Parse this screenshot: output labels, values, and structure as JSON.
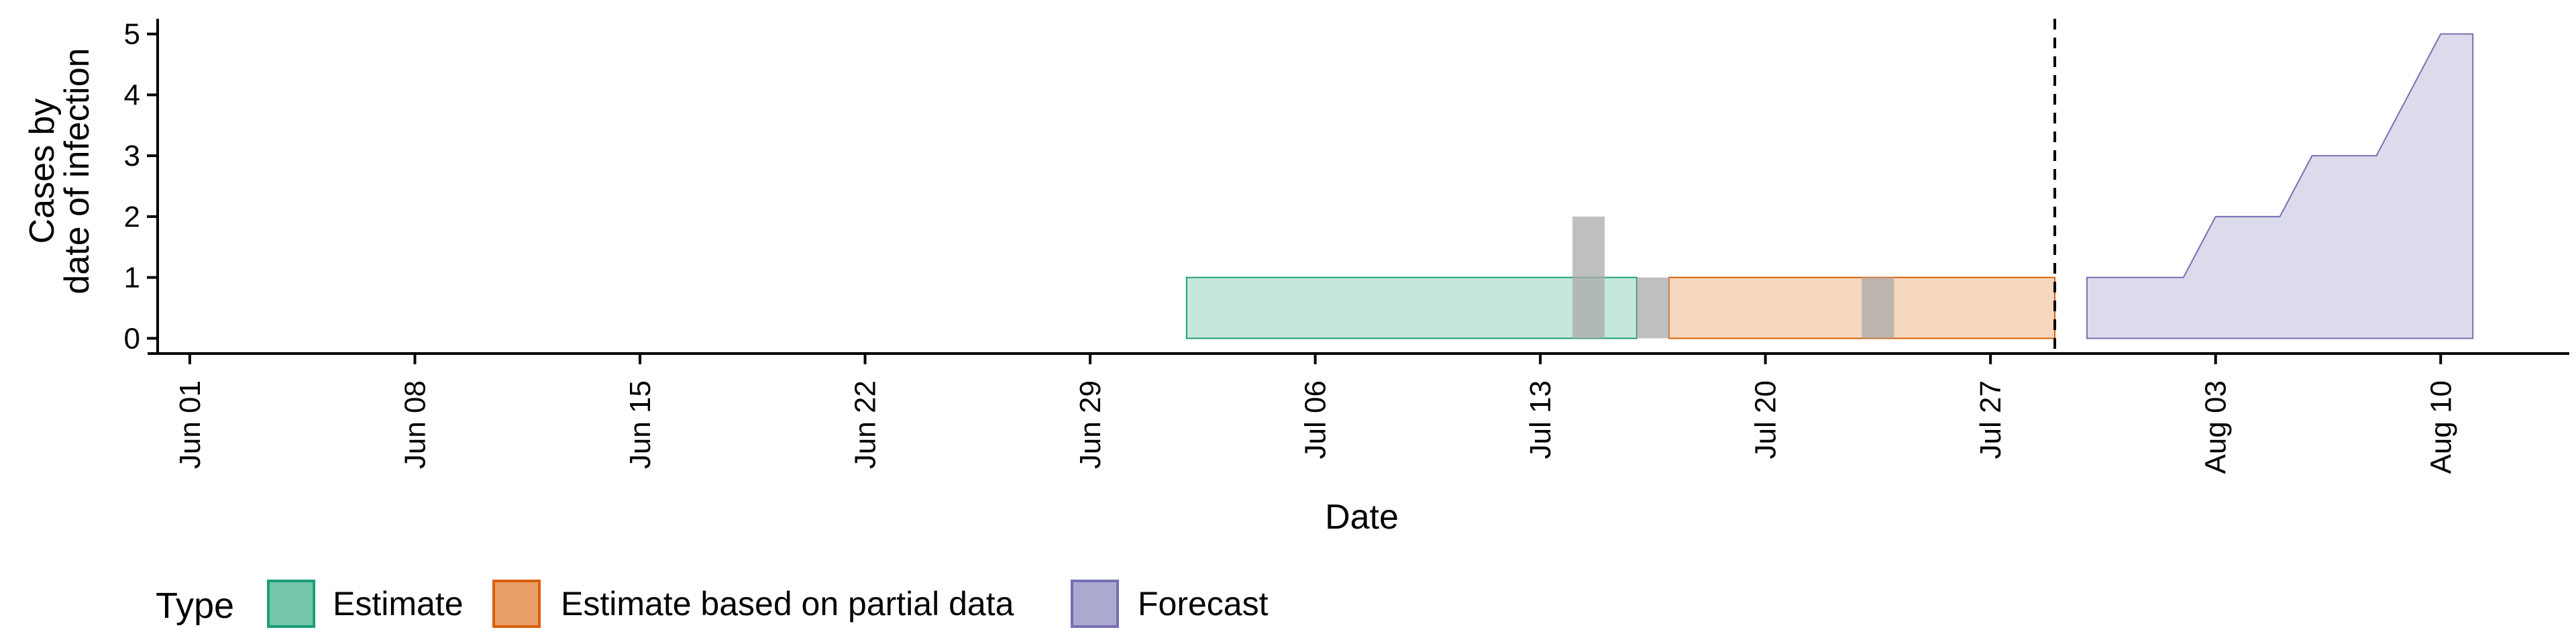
{
  "chart_data": {
    "type": "area",
    "xlabel": "Date",
    "ylabel_lines": [
      "Cases by",
      "date of infection"
    ],
    "ylim": [
      -0.25,
      5.25
    ],
    "xlim": [
      "2021-05-31",
      "2021-08-14"
    ],
    "x_ticks": [
      {
        "date": "2021-06-01",
        "label": "Jun 01"
      },
      {
        "date": "2021-06-08",
        "label": "Jun 08"
      },
      {
        "date": "2021-06-15",
        "label": "Jun 15"
      },
      {
        "date": "2021-06-22",
        "label": "Jun 22"
      },
      {
        "date": "2021-06-29",
        "label": "Jun 29"
      },
      {
        "date": "2021-07-06",
        "label": "Jul 06"
      },
      {
        "date": "2021-07-13",
        "label": "Jul 13"
      },
      {
        "date": "2021-07-20",
        "label": "Jul 20"
      },
      {
        "date": "2021-07-27",
        "label": "Jul 27"
      },
      {
        "date": "2021-08-03",
        "label": "Aug 03"
      },
      {
        "date": "2021-08-10",
        "label": "Aug 10"
      }
    ],
    "y_ticks": [
      {
        "value": 0,
        "label": "0"
      },
      {
        "value": 1,
        "label": "1"
      },
      {
        "value": 2,
        "label": "2"
      },
      {
        "value": 3,
        "label": "3"
      },
      {
        "value": 4,
        "label": "4"
      },
      {
        "value": 5,
        "label": "5"
      }
    ],
    "series": [
      {
        "name": "Estimate",
        "color": "#1B9E77",
        "points": [
          {
            "date": "2021-07-02",
            "lower": 0,
            "upper": 1
          },
          {
            "date": "2021-07-16",
            "lower": 0,
            "upper": 1
          }
        ]
      },
      {
        "name": "Estimate based on partial data",
        "color": "#D95F02",
        "points": [
          {
            "date": "2021-07-17",
            "lower": 0,
            "upper": 1
          },
          {
            "date": "2021-07-29",
            "lower": 0,
            "upper": 1
          }
        ]
      },
      {
        "name": "Forecast",
        "color": "#7570B3",
        "points": [
          {
            "date": "2021-07-30",
            "lower": 0,
            "upper": 1
          },
          {
            "date": "2021-08-01",
            "lower": 0,
            "upper": 1
          },
          {
            "date": "2021-08-02",
            "lower": 0,
            "upper": 1
          },
          {
            "date": "2021-08-03",
            "lower": 0,
            "upper": 2
          },
          {
            "date": "2021-08-04",
            "lower": 0,
            "upper": 2
          },
          {
            "date": "2021-08-05",
            "lower": 0,
            "upper": 2
          },
          {
            "date": "2021-08-06",
            "lower": 0,
            "upper": 3
          },
          {
            "date": "2021-08-07",
            "lower": 0,
            "upper": 3
          },
          {
            "date": "2021-08-08",
            "lower": 0,
            "upper": 3
          },
          {
            "date": "2021-08-09",
            "lower": 0,
            "upper": 4
          },
          {
            "date": "2021-08-10",
            "lower": 0,
            "upper": 5
          },
          {
            "date": "2021-08-11",
            "lower": 0,
            "upper": 5
          }
        ]
      }
    ],
    "reported_cases": [
      {
        "date": "2021-07-15",
        "value": 2
      },
      {
        "date": "2021-07-17",
        "value": 1
      },
      {
        "date": "2021-07-24",
        "value": 1
      }
    ],
    "reported_color": "#A9A9A9",
    "vline_date": "2021-07-29",
    "legend": {
      "position": "bottom",
      "title": "Type",
      "items": [
        "Estimate",
        "Estimate based on partial data",
        "Forecast"
      ]
    },
    "grid": false
  }
}
